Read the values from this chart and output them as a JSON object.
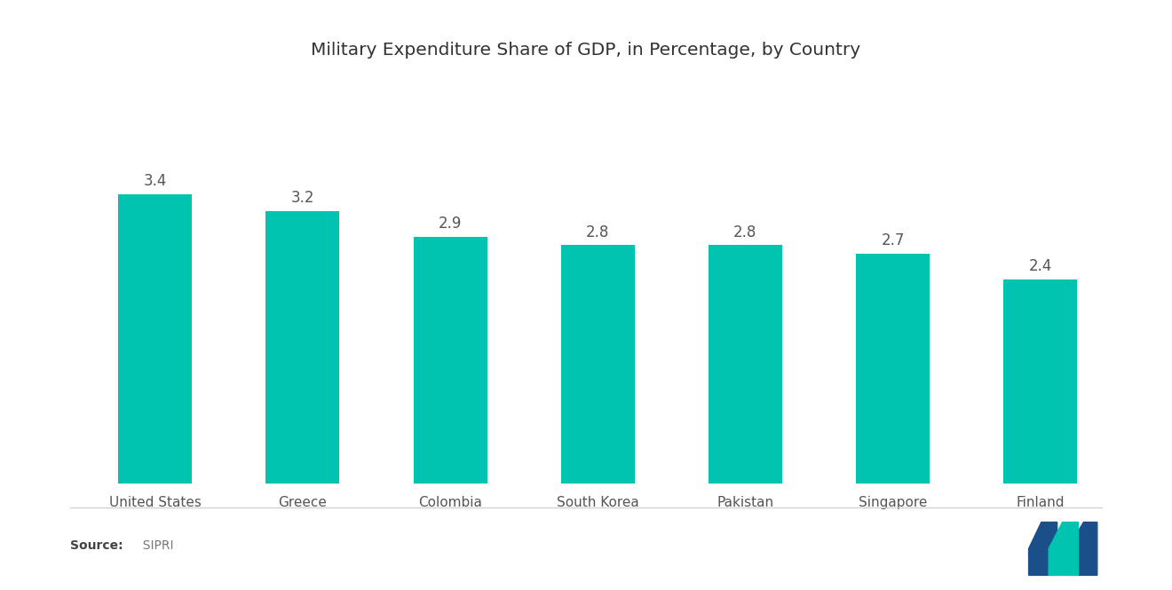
{
  "title": "Military Expenditure Share of GDP, in Percentage, by Country",
  "categories": [
    "United States",
    "Greece",
    "Colombia",
    "South Korea",
    "Pakistan",
    "Singapore",
    "Finland"
  ],
  "values": [
    3.4,
    3.2,
    2.9,
    2.8,
    2.8,
    2.7,
    2.4
  ],
  "bar_color": "#00C4B0",
  "background_color": "#ffffff",
  "title_fontsize": 14.5,
  "label_fontsize": 11,
  "value_fontsize": 12,
  "source_bold": "Source:",
  "source_normal": "  SIPRI",
  "ylim": [
    0,
    4.5
  ],
  "bar_width": 0.5
}
